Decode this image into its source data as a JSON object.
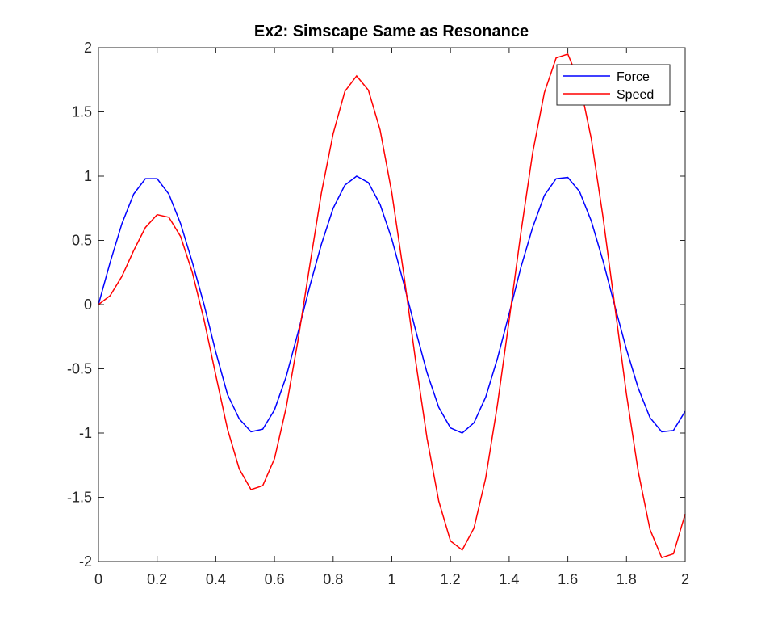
{
  "chart_data": {
    "type": "line",
    "title": "Ex2: Simscape Same as Resonance",
    "xlabel": "",
    "ylabel": "",
    "xlim": [
      0,
      2
    ],
    "ylim": [
      -2,
      2
    ],
    "x_ticks": [
      "0",
      "0.2",
      "0.4",
      "0.6",
      "0.8",
      "1",
      "1.2",
      "1.4",
      "1.6",
      "1.8",
      "2"
    ],
    "y_ticks": [
      "2",
      "1.5",
      "1",
      "0.5",
      "0",
      "-0.5",
      "-1",
      "-1.5",
      "-2"
    ],
    "grid": false,
    "legend_position": "top-right",
    "series": [
      {
        "name": "Force",
        "color": "#0000ff",
        "x": [
          0,
          0.04,
          0.08,
          0.12,
          0.16,
          0.2,
          0.24,
          0.28,
          0.32,
          0.36,
          0.4,
          0.44,
          0.48,
          0.52,
          0.56,
          0.6,
          0.64,
          0.68,
          0.72,
          0.76,
          0.8,
          0.84,
          0.88,
          0.92,
          0.96,
          1.0,
          1.04,
          1.08,
          1.12,
          1.16,
          1.2,
          1.24,
          1.28,
          1.32,
          1.36,
          1.4,
          1.44,
          1.48,
          1.52,
          1.56,
          1.6,
          1.64,
          1.68,
          1.72,
          1.76,
          1.8,
          1.84,
          1.88,
          1.92,
          1.96,
          2.0
        ],
        "y": [
          0,
          0.33,
          0.63,
          0.86,
          0.98,
          0.98,
          0.86,
          0.63,
          0.33,
          0,
          -0.37,
          -0.7,
          -0.89,
          -0.99,
          -0.97,
          -0.82,
          -0.56,
          -0.22,
          0.14,
          0.47,
          0.75,
          0.93,
          1.0,
          0.95,
          0.78,
          0.51,
          0.17,
          -0.19,
          -0.53,
          -0.8,
          -0.96,
          -1.0,
          -0.92,
          -0.72,
          -0.42,
          -0.07,
          0.29,
          0.6,
          0.85,
          0.98,
          0.99,
          0.88,
          0.65,
          0.34,
          -0.01,
          -0.35,
          -0.65,
          -0.88,
          -0.99,
          -0.98,
          -0.83
        ]
      },
      {
        "name": "Speed",
        "color": "#ff0000",
        "x": [
          0,
          0.04,
          0.08,
          0.12,
          0.16,
          0.2,
          0.24,
          0.28,
          0.32,
          0.36,
          0.4,
          0.44,
          0.48,
          0.52,
          0.56,
          0.6,
          0.64,
          0.68,
          0.72,
          0.76,
          0.8,
          0.84,
          0.88,
          0.92,
          0.96,
          1.0,
          1.04,
          1.08,
          1.12,
          1.16,
          1.2,
          1.24,
          1.28,
          1.32,
          1.36,
          1.4,
          1.44,
          1.48,
          1.52,
          1.56,
          1.6,
          1.64,
          1.68,
          1.72,
          1.76,
          1.8,
          1.84,
          1.88,
          1.92,
          1.96,
          2.0
        ],
        "y": [
          0,
          0.07,
          0.22,
          0.42,
          0.6,
          0.7,
          0.68,
          0.53,
          0.25,
          -0.12,
          -0.55,
          -0.97,
          -1.28,
          -1.44,
          -1.41,
          -1.2,
          -0.8,
          -0.28,
          0.3,
          0.87,
          1.33,
          1.66,
          1.78,
          1.67,
          1.36,
          0.87,
          0.25,
          -0.42,
          -1.04,
          -1.53,
          -1.84,
          -1.91,
          -1.74,
          -1.35,
          -0.78,
          -0.12,
          0.56,
          1.18,
          1.65,
          1.92,
          1.95,
          1.73,
          1.29,
          0.68,
          -0.01,
          -0.7,
          -1.3,
          -1.75,
          -1.97,
          -1.94,
          -1.63
        ]
      }
    ]
  }
}
